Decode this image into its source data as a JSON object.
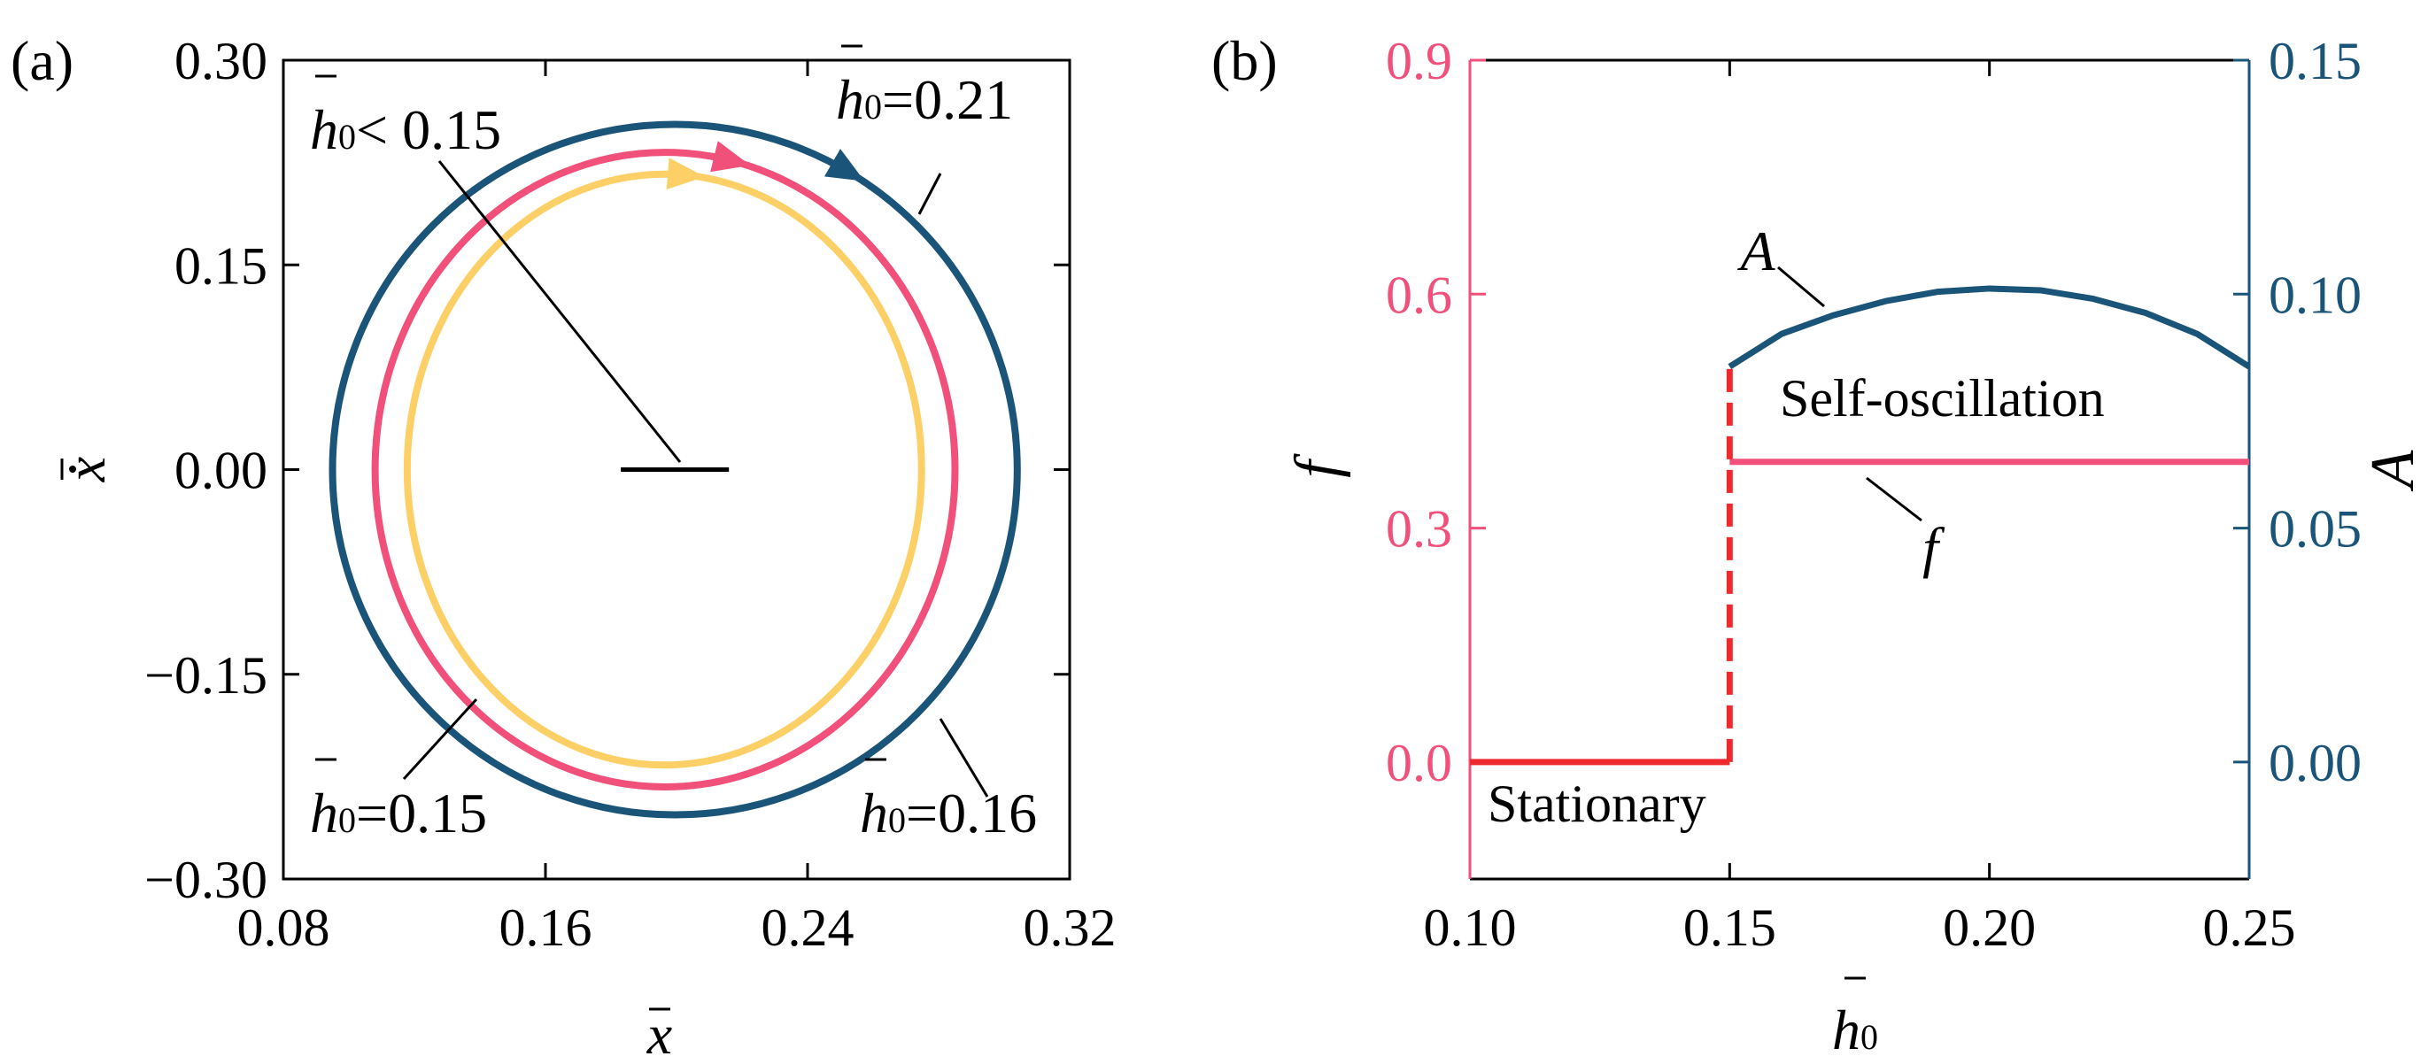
{
  "colors": {
    "navy": "#1a5478",
    "pink": "#f0507a",
    "yellow": "#fdd067",
    "red": "#ee2a2e",
    "black": "#000000"
  },
  "chart_data": [
    {
      "type": "line",
      "panel_label": "(a)",
      "xlabel": "x",
      "ylabel": "x",
      "xlim": [
        0.08,
        0.32
      ],
      "ylim": [
        -0.3,
        0.3
      ],
      "x_ticks": [
        "0.08",
        "0.16",
        "0.24",
        "0.32"
      ],
      "y_ticks": [
        "0.30",
        "0.15",
        "0.00",
        "−0.15",
        "−0.30"
      ],
      "series": [
        {
          "name": "h0=0.21",
          "color": "navy",
          "shape": "limit-cycle",
          "center": [
            0.1995,
            0.0
          ],
          "rx": 0.1045,
          "ry": 0.253
        },
        {
          "name": "h0=0.16",
          "color": "pink",
          "shape": "limit-cycle",
          "center": [
            0.1965,
            0.0
          ],
          "rx": 0.0885,
          "ry": 0.2325
        },
        {
          "name": "h0=0.15",
          "color": "yellow",
          "shape": "limit-cycle",
          "center": [
            0.1963,
            0.0
          ],
          "rx": 0.0785,
          "ry": 0.2165
        },
        {
          "name": "h0<0.15",
          "color": "black",
          "shape": "fixed-point",
          "x": [
            0.183,
            0.216
          ],
          "y": [
            0.0,
            0.0
          ]
        }
      ],
      "annotations": [
        {
          "main": "h",
          "sub": "0",
          "rest": "< 0.15"
        },
        {
          "main": "h",
          "sub": "0",
          "rest": "=0.21"
        },
        {
          "main": "h",
          "sub": "0",
          "rest": "=0.15"
        },
        {
          "main": "h",
          "sub": "0",
          "rest": "=0.16"
        }
      ]
    },
    {
      "type": "line",
      "panel_label": "(b)",
      "xlabel": "h",
      "xlabel_sub": "0",
      "ylabel_left": "f",
      "ylabel_right": "A",
      "xlim": [
        0.1,
        0.25
      ],
      "ylim_left": [
        -0.15,
        0.9
      ],
      "ylim_right": [
        -0.025,
        0.15
      ],
      "x_ticks": [
        "0.10",
        "0.15",
        "0.20",
        "0.25"
      ],
      "y_ticks_left": [
        "0.9",
        "0.6",
        "0.3",
        "0.0"
      ],
      "y_ticks_right": [
        "0.15",
        "0.10",
        "0.05",
        "0.00"
      ],
      "series": [
        {
          "name": "A",
          "axis": "right",
          "color": "navy",
          "x": [
            0.15,
            0.16,
            0.17,
            0.18,
            0.19,
            0.2,
            0.21,
            0.22,
            0.23,
            0.24,
            0.25
          ],
          "y": [
            0.0845,
            0.0915,
            0.0955,
            0.0985,
            0.1005,
            0.1012,
            0.1008,
            0.099,
            0.096,
            0.0915,
            0.0845
          ]
        },
        {
          "name": "f",
          "axis": "left",
          "color": "pink",
          "x": [
            0.15,
            0.25
          ],
          "y": [
            0.385,
            0.385
          ]
        },
        {
          "name": "stationary",
          "axis": "left",
          "color": "red",
          "x": [
            0.1,
            0.15
          ],
          "y": [
            0.0,
            0.0
          ]
        },
        {
          "name": "jump",
          "axis": "left",
          "color": "red",
          "style": "dashed",
          "x": [
            0.15,
            0.15
          ],
          "y": [
            0.0,
            0.51
          ]
        }
      ],
      "annotations": [
        "A",
        "f",
        "Self-oscillation",
        "Stationary"
      ]
    }
  ]
}
